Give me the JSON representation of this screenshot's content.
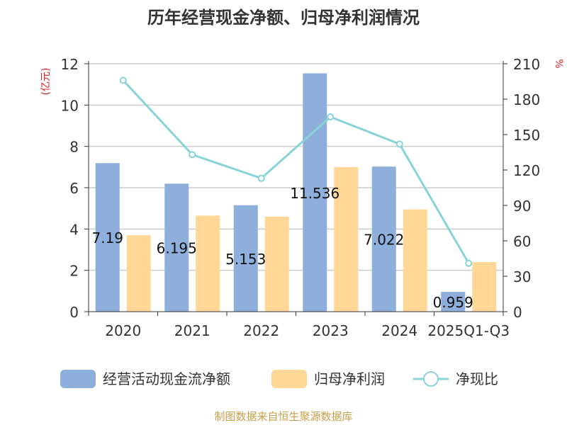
{
  "colors": {
    "bar_cash": "#8eaedb",
    "bar_profit": "#ffd898",
    "line": "#88d3d8",
    "title": "#333333",
    "axis_unit": "#e02020",
    "source": "#c8a04a",
    "grid": "#cccccc",
    "text": "#333333"
  },
  "chart_data": {
    "type": "bar",
    "title": "历年经营现金净额、归母净利润情况",
    "categories": [
      "2020",
      "2021",
      "2022",
      "2023",
      "2024",
      "2025Q1-Q3"
    ],
    "series": [
      {
        "name": "经营活动现金流净额",
        "type": "bar",
        "axis": "left",
        "values": [
          7.19,
          6.195,
          5.153,
          11.536,
          7.022,
          0.959
        ]
      },
      {
        "name": "归母净利润",
        "type": "bar",
        "axis": "left",
        "values": [
          3.7,
          4.65,
          4.6,
          7.0,
          4.95,
          2.4
        ]
      },
      {
        "name": "净现比",
        "type": "line",
        "axis": "right",
        "values": [
          196,
          133,
          113,
          165,
          142,
          41
        ]
      }
    ],
    "bar_labels": [
      "7.19",
      "6.195",
      "5.153",
      "11.536",
      "7.022",
      "0.959"
    ],
    "y_left": {
      "label": "(亿元)",
      "ylim": [
        0,
        12
      ],
      "ticks": [
        0,
        2,
        4,
        6,
        8,
        10,
        12
      ]
    },
    "y_right": {
      "label": "%",
      "ylim": [
        0,
        210
      ],
      "ticks": [
        0,
        30,
        60,
        90,
        120,
        150,
        180,
        210
      ]
    },
    "grid": true,
    "legend_position": "bottom"
  },
  "footer": {
    "source": "制图数据来自恒生聚源数据库"
  }
}
